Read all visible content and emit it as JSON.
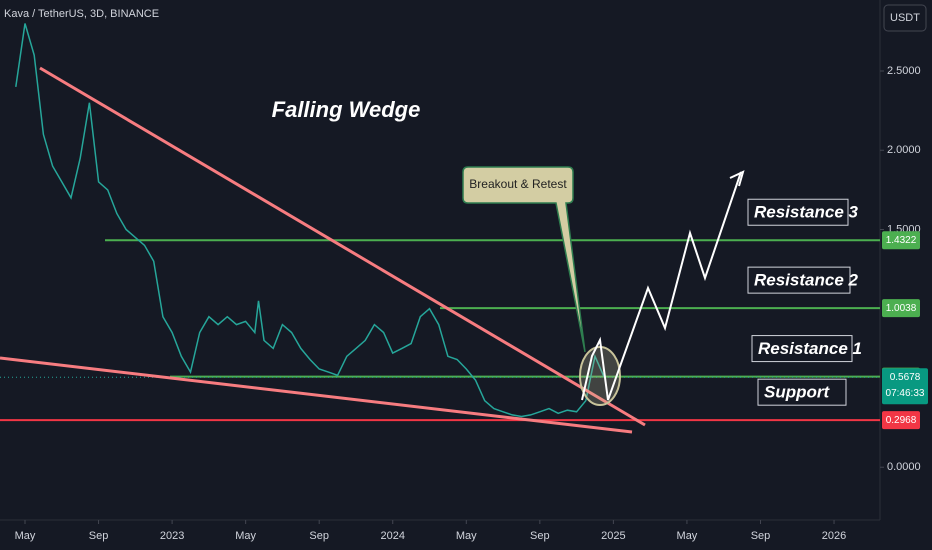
{
  "chart_data": {
    "type": "line",
    "title": "Kava / TetherUS, 3D, BINANCE",
    "currency": "USDT",
    "annotation": "Falling Wedge",
    "callout": "Breakout & Retest",
    "x": [
      -0.5,
      0,
      0.5,
      1,
      1.5,
      2,
      2.5,
      3,
      3.5,
      4,
      4.5,
      5,
      5.5,
      6,
      6.5,
      7,
      7.5,
      8,
      8.5,
      9,
      9.5,
      10,
      10.5,
      11,
      11.5,
      12,
      12.5,
      12.7,
      13,
      13.5,
      14,
      14.5,
      15,
      15.5,
      16,
      16.5,
      17,
      17.5,
      18,
      18.5,
      19,
      19.5,
      20,
      20.5,
      21,
      21.5,
      22,
      22.5,
      23,
      23.5,
      24,
      24.5,
      25,
      25.5,
      26,
      26.5,
      27,
      27.5,
      28,
      28.5,
      29,
      29.5,
      30,
      30.5,
      31,
      31.5
    ],
    "series": [
      {
        "name": "KAVAUSDT",
        "color": "#26a69a",
        "values": [
          2.4,
          2.8,
          2.6,
          2.1,
          1.9,
          1.8,
          1.7,
          1.95,
          2.3,
          1.8,
          1.75,
          1.6,
          1.5,
          1.45,
          1.4,
          1.3,
          0.95,
          0.85,
          0.7,
          0.6,
          0.85,
          0.95,
          0.9,
          0.95,
          0.9,
          0.92,
          0.85,
          1.05,
          0.8,
          0.75,
          0.9,
          0.85,
          0.75,
          0.68,
          0.62,
          0.6,
          0.58,
          0.7,
          0.75,
          0.8,
          0.9,
          0.85,
          0.72,
          0.75,
          0.78,
          0.95,
          1.0,
          0.9,
          0.7,
          0.68,
          0.62,
          0.55,
          0.42,
          0.37,
          0.35,
          0.33,
          0.32,
          0.33,
          0.35,
          0.37,
          0.34,
          0.36,
          0.35,
          0.42,
          0.7,
          0.5678
        ]
      }
    ],
    "levels": [
      {
        "name": "Resistance 3",
        "value": 1.4322,
        "color": "#4caf50"
      },
      {
        "name": "Resistance 2",
        "value": 1.0038,
        "color": "#4caf50"
      },
      {
        "name": "Resistance  1",
        "value": 0.5719,
        "color": "#4caf50"
      },
      {
        "name": "Support",
        "value": 0.2968,
        "color": "#f23645"
      }
    ],
    "last_price": 0.5678,
    "countdown": "07:46:33",
    "xlim": [
      -1.36,
      46.5
    ],
    "xticks": [
      {
        "value": 0,
        "label": "May"
      },
      {
        "value": 4,
        "label": "Sep"
      },
      {
        "value": 8,
        "label": "2023"
      },
      {
        "value": 12,
        "label": "May"
      },
      {
        "value": 16,
        "label": "Sep"
      },
      {
        "value": 20,
        "label": "2024"
      },
      {
        "value": 24,
        "label": "May"
      },
      {
        "value": 28,
        "label": "Sep"
      },
      {
        "value": 32,
        "label": "2025"
      },
      {
        "value": 36,
        "label": "May"
      },
      {
        "value": 40,
        "label": "Sep"
      },
      {
        "value": 44,
        "label": "2026"
      }
    ],
    "ylim": [
      -0.333,
      2.948
    ],
    "yticks": [
      {
        "value": 0,
        "label": "0.0000"
      },
      {
        "value": 1.5,
        "label": "1.5000"
      },
      {
        "value": 2,
        "label": "2.0000"
      },
      {
        "value": 2.5,
        "label": "2.5000"
      }
    ],
    "grid": false
  }
}
